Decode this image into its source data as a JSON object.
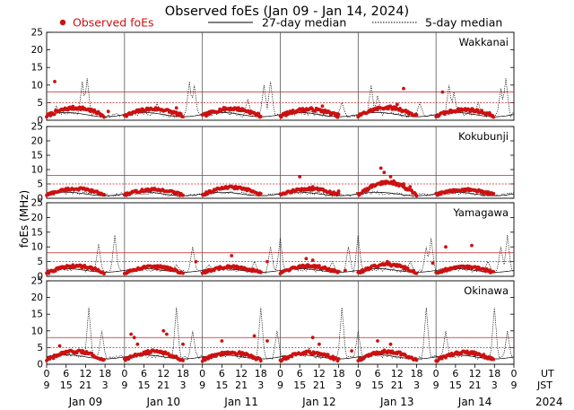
{
  "title": "Observed foEs (Jan 09 - Jan 14, 2024)",
  "legend": {
    "observed": "Observed foEs",
    "median27": "27-day median",
    "median5": "5-day median"
  },
  "ylabel": "foEs (MHz)",
  "colors": {
    "observed": "#cc1111",
    "median27": "#000000",
    "median5": "#000000",
    "reference": "#cc2222"
  },
  "utc_label": "UT",
  "jst_label": "JST",
  "year_label": "2024",
  "ut_ticks": [
    {
      "ut": "0",
      "jst": "9"
    },
    {
      "ut": "6",
      "jst": "15"
    },
    {
      "ut": "12",
      "jst": "21"
    },
    {
      "ut": "18",
      "jst": "3"
    },
    {
      "ut": "0",
      "jst": "9"
    },
    {
      "ut": "6",
      "jst": "15"
    },
    {
      "ut": "12",
      "jst": "21"
    },
    {
      "ut": "18",
      "jst": "3"
    },
    {
      "ut": "0",
      "jst": "9"
    },
    {
      "ut": "6",
      "jst": "15"
    },
    {
      "ut": "12",
      "jst": "21"
    },
    {
      "ut": "18",
      "jst": "3"
    },
    {
      "ut": "0",
      "jst": "9"
    },
    {
      "ut": "6",
      "jst": "15"
    },
    {
      "ut": "12",
      "jst": "21"
    },
    {
      "ut": "18",
      "jst": "3"
    },
    {
      "ut": "0",
      "jst": "9"
    },
    {
      "ut": "6",
      "jst": "15"
    },
    {
      "ut": "12",
      "jst": "21"
    },
    {
      "ut": "18",
      "jst": "3"
    },
    {
      "ut": "0",
      "jst": "9"
    },
    {
      "ut": "6",
      "jst": "15"
    },
    {
      "ut": "12",
      "jst": "21"
    },
    {
      "ut": "18",
      "jst": "3"
    },
    {
      "ut": "0",
      "jst": "9"
    }
  ],
  "day_labels": [
    "Jan 09",
    "Jan 10",
    "Jan 11",
    "Jan 12",
    "Jan 13",
    "Jan 14"
  ],
  "chart_data": {
    "type": "scatter",
    "x_unit": "hours UT since Jan 09 00:00",
    "xlim": [
      0,
      144
    ],
    "ylim": [
      0,
      25
    ],
    "yticks": [
      0,
      5,
      10,
      15,
      20,
      25
    ],
    "panels": [
      {
        "station": "Wakkanai",
        "reference_lines": [
          5,
          8
        ],
        "median_base": 1.6,
        "median_spikes": [
          {
            "x": 3,
            "y": 4
          },
          {
            "x": 11,
            "y": 11
          },
          {
            "x": 12.5,
            "y": 12
          },
          {
            "x": 34,
            "y": 5
          },
          {
            "x": 44,
            "y": 11
          },
          {
            "x": 45.5,
            "y": 10
          },
          {
            "x": 62,
            "y": 6
          },
          {
            "x": 67,
            "y": 10
          },
          {
            "x": 69,
            "y": 11
          },
          {
            "x": 91,
            "y": 5
          },
          {
            "x": 100,
            "y": 10
          },
          {
            "x": 102,
            "y": 7
          },
          {
            "x": 115,
            "y": 5
          },
          {
            "x": 124,
            "y": 10
          },
          {
            "x": 125.5,
            "y": 8
          },
          {
            "x": 133,
            "y": 5
          },
          {
            "x": 140,
            "y": 9
          },
          {
            "x": 141.5,
            "y": 12
          }
        ],
        "observed_bumps": [
          {
            "x": 2,
            "y": 3.5
          },
          {
            "x": 26,
            "y": 3.2
          },
          {
            "x": 50,
            "y": 3.3
          },
          {
            "x": 74,
            "y": 3.1
          },
          {
            "x": 98,
            "y": 3.6
          },
          {
            "x": 122,
            "y": 3.0
          }
        ],
        "observed_outliers": [
          {
            "x": 2.5,
            "y": 11
          },
          {
            "x": 19,
            "y": 2.5
          },
          {
            "x": 40,
            "y": 3.5
          },
          {
            "x": 55,
            "y": 3.5
          },
          {
            "x": 85,
            "y": 4
          },
          {
            "x": 108,
            "y": 4.5
          },
          {
            "x": 110,
            "y": 9
          },
          {
            "x": 122,
            "y": 8
          }
        ]
      },
      {
        "station": "Kokubunji",
        "reference_lines": [
          5,
          8
        ],
        "median_base": 1.5,
        "median_spikes": [],
        "observed_bumps": [
          {
            "x": 2,
            "y": 3.3
          },
          {
            "x": 26,
            "y": 3.0
          },
          {
            "x": 50,
            "y": 3.8
          },
          {
            "x": 74,
            "y": 3.3
          },
          {
            "x": 98,
            "y": 5.5
          },
          {
            "x": 122,
            "y": 3.0
          }
        ],
        "observed_outliers": [
          {
            "x": 78,
            "y": 7.5
          },
          {
            "x": 82,
            "y": 4
          },
          {
            "x": 84,
            "y": 3
          },
          {
            "x": 90,
            "y": 2.5
          },
          {
            "x": 103,
            "y": 10.5
          },
          {
            "x": 104,
            "y": 9
          },
          {
            "x": 106,
            "y": 7.5
          },
          {
            "x": 107,
            "y": 6
          },
          {
            "x": 110,
            "y": 5
          },
          {
            "x": 112,
            "y": 4
          }
        ]
      },
      {
        "station": "Yamagawa",
        "reference_lines": [
          5,
          8
        ],
        "median_base": 2.0,
        "median_spikes": [
          {
            "x": 9,
            "y": 4
          },
          {
            "x": 16,
            "y": 11
          },
          {
            "x": 21,
            "y": 14
          },
          {
            "x": 40,
            "y": 4
          },
          {
            "x": 45,
            "y": 10
          },
          {
            "x": 50,
            "y": 4
          },
          {
            "x": 64,
            "y": 5
          },
          {
            "x": 69,
            "y": 10
          },
          {
            "x": 72,
            "y": 13
          },
          {
            "x": 88,
            "y": 5
          },
          {
            "x": 93,
            "y": 10
          },
          {
            "x": 96,
            "y": 14
          },
          {
            "x": 112,
            "y": 5
          },
          {
            "x": 117,
            "y": 10
          },
          {
            "x": 118.5,
            "y": 13
          },
          {
            "x": 136,
            "y": 5
          },
          {
            "x": 140,
            "y": 10
          },
          {
            "x": 142,
            "y": 14
          }
        ],
        "observed_bumps": [
          {
            "x": 2,
            "y": 3.5
          },
          {
            "x": 26,
            "y": 3.3
          },
          {
            "x": 50,
            "y": 3.2
          },
          {
            "x": 74,
            "y": 3.5
          },
          {
            "x": 98,
            "y": 4.0
          },
          {
            "x": 122,
            "y": 3.2
          }
        ],
        "observed_outliers": [
          {
            "x": 8,
            "y": 3
          },
          {
            "x": 34,
            "y": 2.5
          },
          {
            "x": 46,
            "y": 5
          },
          {
            "x": 57,
            "y": 7
          },
          {
            "x": 68,
            "y": 5
          },
          {
            "x": 80,
            "y": 6
          },
          {
            "x": 82,
            "y": 5.5
          },
          {
            "x": 92,
            "y": 2
          },
          {
            "x": 105,
            "y": 5
          },
          {
            "x": 119,
            "y": 4.5
          },
          {
            "x": 123,
            "y": 10
          },
          {
            "x": 131,
            "y": 10.5
          }
        ]
      },
      {
        "station": "Okinawa",
        "reference_lines": [
          5,
          8
        ],
        "median_base": 2.2,
        "median_spikes": [
          {
            "x": 13,
            "y": 17
          },
          {
            "x": 17,
            "y": 10
          },
          {
            "x": 40,
            "y": 17
          },
          {
            "x": 45,
            "y": 10
          },
          {
            "x": 57,
            "y": 4
          },
          {
            "x": 66,
            "y": 17
          },
          {
            "x": 71,
            "y": 10
          },
          {
            "x": 81,
            "y": 5
          },
          {
            "x": 91,
            "y": 17
          },
          {
            "x": 96,
            "y": 10
          },
          {
            "x": 117,
            "y": 17
          },
          {
            "x": 123,
            "y": 10
          },
          {
            "x": 138,
            "y": 17
          },
          {
            "x": 142,
            "y": 10
          }
        ],
        "observed_bumps": [
          {
            "x": 2,
            "y": 3.8
          },
          {
            "x": 26,
            "y": 3.8
          },
          {
            "x": 50,
            "y": 3.5
          },
          {
            "x": 74,
            "y": 3.5
          },
          {
            "x": 98,
            "y": 3.8
          },
          {
            "x": 122,
            "y": 3.5
          }
        ],
        "observed_outliers": [
          {
            "x": 4,
            "y": 5.5
          },
          {
            "x": 26,
            "y": 9
          },
          {
            "x": 27,
            "y": 8
          },
          {
            "x": 28,
            "y": 6
          },
          {
            "x": 36,
            "y": 10
          },
          {
            "x": 37,
            "y": 9
          },
          {
            "x": 42,
            "y": 6
          },
          {
            "x": 54,
            "y": 7
          },
          {
            "x": 64,
            "y": 8.5
          },
          {
            "x": 68,
            "y": 7
          },
          {
            "x": 82,
            "y": 8
          },
          {
            "x": 84,
            "y": 6
          },
          {
            "x": 94,
            "y": 4
          },
          {
            "x": 102,
            "y": 7
          },
          {
            "x": 106,
            "y": 6
          }
        ]
      }
    ]
  }
}
